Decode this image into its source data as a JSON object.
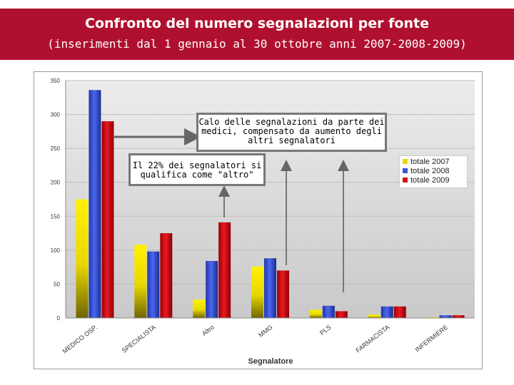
{
  "header": {
    "title": "Confronto del numero segnalazioni per fonte",
    "subtitle": "(inserimenti dal 1 gennaio al 30 ottobre anni 2007-2008-2009)"
  },
  "colors": {
    "title_band": "#b0102f",
    "series_2007": "#f2ea00",
    "series_2008": "#3a55d8",
    "series_2009": "#d41015",
    "plot_bg": "#d8d8d8"
  },
  "callouts": {
    "medici": "Calo delle segnalazioni da parte dei medici, compensato da aumento degli altri segnalatori",
    "altro": "Il 22% dei segnalatori si qualifica come \"altro\""
  },
  "chart_data": {
    "type": "bar",
    "title": "",
    "xlabel": "Segnalatore",
    "ylabel": "",
    "ylim": [
      0,
      350
    ],
    "yticks": [
      0,
      50,
      100,
      150,
      200,
      250,
      300,
      350
    ],
    "categories": [
      "MEDICO OSP.",
      "SPECIALISTA",
      "Altro",
      "MMG",
      "PLS",
      "FARMACISTA",
      "INFERMIERE"
    ],
    "series": [
      {
        "name": "totale 2007",
        "values": [
          175,
          108,
          27,
          76,
          12,
          5,
          1
        ]
      },
      {
        "name": "totale 2008",
        "values": [
          336,
          98,
          84,
          88,
          18,
          17,
          4
        ]
      },
      {
        "name": "totale 2009",
        "values": [
          290,
          125,
          141,
          70,
          10,
          17,
          4
        ]
      }
    ],
    "legend_position": "right",
    "grid": true
  }
}
